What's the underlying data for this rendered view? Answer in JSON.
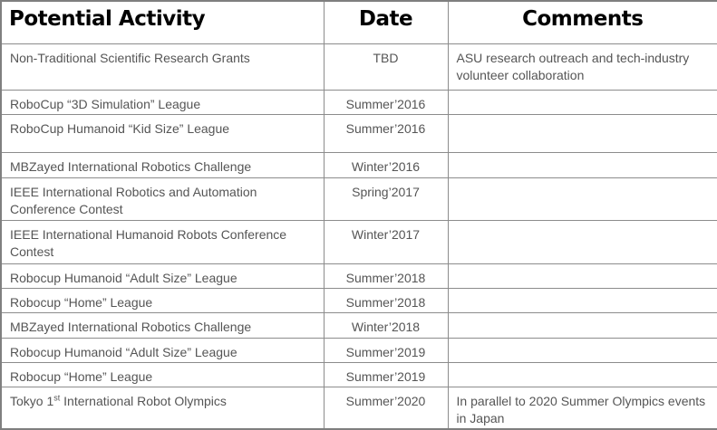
{
  "headers": {
    "activity": "Potential Activity",
    "date": "Date",
    "comments": "Comments"
  },
  "rows": [
    {
      "activity": "Non-Traditional Scientific Research Grants",
      "date": "TBD",
      "comment": "ASU research outreach and tech-industry volunteer collaboration"
    },
    {
      "activity": "RoboCup “3D Simulation” League",
      "date": "Summer’2016",
      "comment": ""
    },
    {
      "activity": "RoboCup Humanoid “Kid Size” League",
      "date": "Summer’2016",
      "comment": ""
    },
    {
      "activity": "MBZayed International Robotics Challenge",
      "date": "Winter’2016",
      "comment": ""
    },
    {
      "activity": "IEEE International Robotics and Automation Conference Contest",
      "date": "Spring’2017",
      "comment": ""
    },
    {
      "activity": "IEEE International Humanoid Robots Conference Contest",
      "date": "Winter’2017",
      "comment": ""
    },
    {
      "activity": "Robocup Humanoid “Adult Size” League",
      "date": "Summer’2018",
      "comment": ""
    },
    {
      "activity": "Robocup “Home” League",
      "date": "Summer’2018",
      "comment": ""
    },
    {
      "activity": "MBZayed International Robotics Challenge",
      "date": "Winter’2018",
      "comment": ""
    },
    {
      "activity": "Robocup Humanoid “Adult Size” League",
      "date": "Summer’2019",
      "comment": ""
    },
    {
      "activity": "Robocup “Home” League",
      "date": "Summer’2019",
      "comment": ""
    },
    {
      "activity_pre": "Tokyo 1",
      "activity_sup": "st",
      "activity_post": " International Robot Olympics",
      "date": "Summer’2020",
      "comment": "In parallel to 2020 Summer Olympics events  in Japan"
    }
  ]
}
